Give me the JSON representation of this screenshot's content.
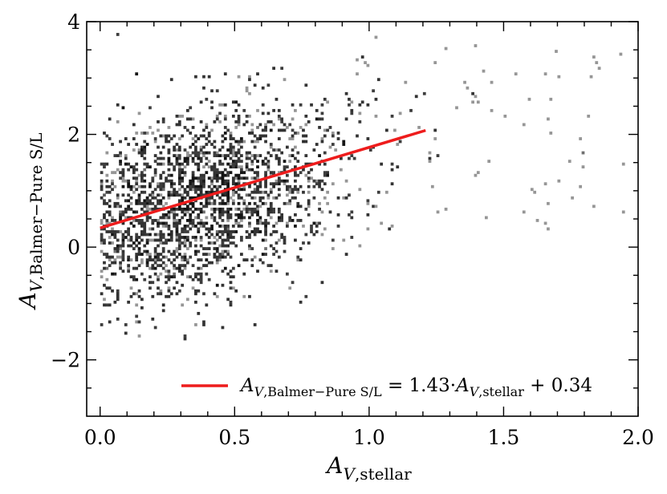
{
  "chart_data": {
    "type": "heatmap",
    "subtype": "2d-histogram-with-linear-fit",
    "title": "",
    "xlabel": {
      "main": "A",
      "sub1": "V",
      "sub2": ",stellar"
    },
    "ylabel": {
      "main": "A",
      "sub1": "V",
      "sub2": ",Balmer−Pure S/L"
    },
    "xlim": [
      -0.05,
      2.0
    ],
    "ylim": [
      -3.0,
      4.0
    ],
    "x_ticks": [
      0.0,
      0.5,
      1.0,
      1.5,
      2.0
    ],
    "x_tick_labels": [
      "0.0",
      "0.5",
      "1.0",
      "1.5",
      "2.0"
    ],
    "y_ticks": [
      -2,
      0,
      2,
      4
    ],
    "y_tick_labels": [
      "−2",
      "0",
      "2",
      "4"
    ],
    "grid": false,
    "histogram": {
      "colormap": "greys",
      "bin_width_x": 0.01,
      "bin_width_y": 0.05,
      "core_center": [
        0.35,
        0.75
      ],
      "point_count": 10000,
      "x_extent": [
        0.0,
        1.95
      ],
      "y_extent": [
        -1.9,
        3.9
      ]
    },
    "fit_line": {
      "slope": 1.43,
      "intercept": 0.34,
      "x_range": [
        0.0,
        1.21
      ],
      "color": "#ee1c1c"
    },
    "legend": {
      "placement": "lower-right",
      "label": {
        "lhs_main": "A",
        "lhs_sub1": "V",
        "lhs_sub2": ",Balmer−Pure S/L",
        "equals": " = 1.43·",
        "rhs_main": "A",
        "rhs_sub1": "V",
        "rhs_sub2": ",stellar",
        "tail": " + 0.34"
      }
    }
  }
}
